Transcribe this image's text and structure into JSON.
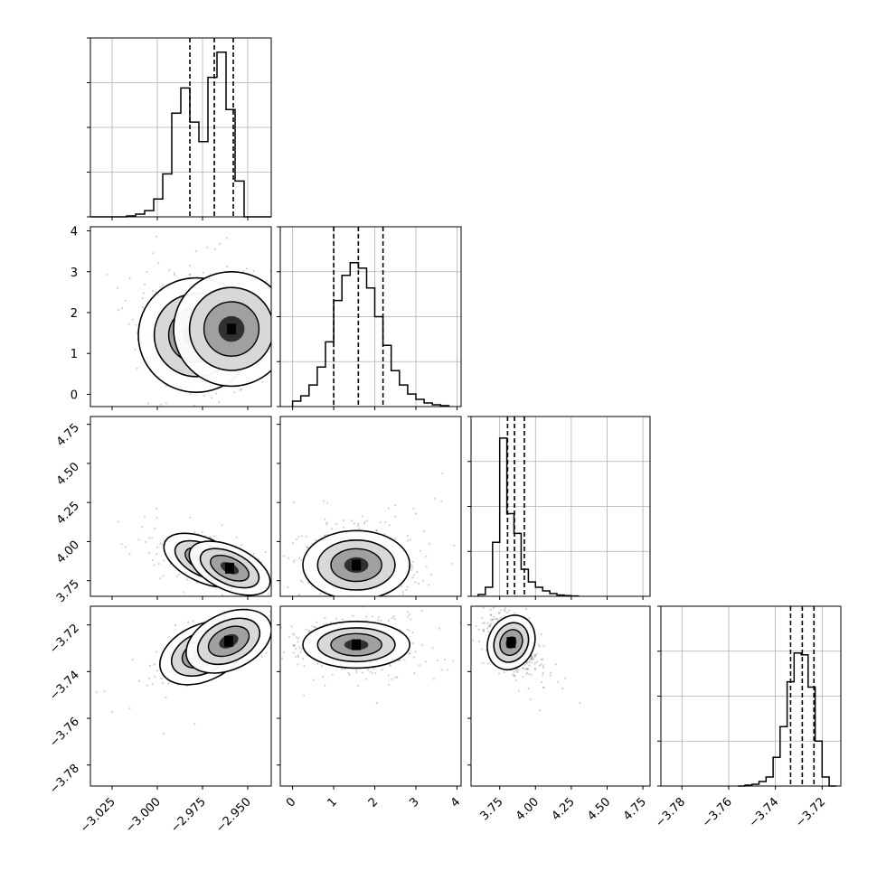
{
  "figure": {
    "title": "",
    "colors": {
      "frame": "#000000",
      "grid": "#b0b0b0",
      "hist": "#000000",
      "scatter": "#000000",
      "background": "#ffffff"
    }
  },
  "chart_data": [
    {
      "type": "histogram",
      "panel": "hist-p0",
      "parameter_index": 0,
      "title": "",
      "xlabel": "",
      "ylabel": "",
      "xlim": [
        -3.037,
        -2.937
      ],
      "ylim": [
        0,
        1.0
      ],
      "grid": true,
      "bin_edges": [
        -3.037,
        -3.032,
        -3.027,
        -3.022,
        -3.017,
        -3.012,
        -3.007,
        -3.002,
        -2.997,
        -2.992,
        -2.987,
        -2.982,
        -2.977,
        -2.972,
        -2.967,
        -2.962,
        -2.957,
        -2.952,
        -2.947,
        -2.942,
        -2.937
      ],
      "values": [
        0.0,
        0.0,
        0.0,
        0.0,
        0.005,
        0.015,
        0.035,
        0.1,
        0.24,
        0.58,
        0.72,
        0.53,
        0.42,
        0.78,
        0.92,
        0.6,
        0.2,
        0.0,
        0.0,
        0.0
      ],
      "quantile_lines_x": [
        -2.982,
        -2.9685,
        -2.958
      ]
    },
    {
      "type": "histogram",
      "panel": "hist-p1",
      "parameter_index": 1,
      "title": "",
      "xlabel": "",
      "ylabel": "",
      "xlim": [
        -0.3,
        4.1
      ],
      "ylim": [
        0,
        1.0
      ],
      "grid": true,
      "bin_edges": [
        0.0,
        0.2,
        0.4,
        0.6,
        0.8,
        1.0,
        1.2,
        1.4,
        1.6,
        1.8,
        2.0,
        2.2,
        2.4,
        2.6,
        2.8,
        3.0,
        3.2,
        3.4,
        3.6,
        3.8
      ],
      "values": [
        0.03,
        0.06,
        0.12,
        0.22,
        0.36,
        0.59,
        0.73,
        0.8,
        0.77,
        0.66,
        0.5,
        0.34,
        0.2,
        0.12,
        0.07,
        0.04,
        0.02,
        0.01,
        0.005
      ],
      "quantile_lines_x": [
        1.0,
        1.6,
        2.2
      ]
    },
    {
      "type": "histogram",
      "panel": "hist-p2",
      "parameter_index": 2,
      "title": "",
      "xlabel": "",
      "ylabel": "",
      "xlim": [
        3.55,
        4.8
      ],
      "ylim": [
        0,
        1.0
      ],
      "grid": true,
      "bin_edges": [
        3.6,
        3.65,
        3.7,
        3.75,
        3.8,
        3.85,
        3.9,
        3.95,
        4.0,
        4.05,
        4.1,
        4.15,
        4.2,
        4.25,
        4.3
      ],
      "values": [
        0.01,
        0.05,
        0.3,
        0.88,
        0.46,
        0.35,
        0.15,
        0.08,
        0.05,
        0.03,
        0.015,
        0.007,
        0.004,
        0.002
      ],
      "quantile_lines_x": [
        3.805,
        3.853,
        3.922
      ]
    },
    {
      "type": "histogram",
      "panel": "hist-p3",
      "parameter_index": 3,
      "title": "",
      "xlabel": "",
      "ylabel": "",
      "xlim": [
        -3.789,
        -3.712
      ],
      "ylim": [
        0,
        1.0
      ],
      "grid": true,
      "bin_edges": [
        -3.756,
        -3.753,
        -3.75,
        -3.747,
        -3.744,
        -3.741,
        -3.738,
        -3.735,
        -3.732,
        -3.729,
        -3.726,
        -3.723,
        -3.72,
        -3.717,
        -3.714
      ],
      "values": [
        0.0,
        0.005,
        0.01,
        0.025,
        0.05,
        0.16,
        0.33,
        0.58,
        0.74,
        0.73,
        0.55,
        0.25,
        0.05,
        0.0
      ],
      "quantile_lines_x": [
        -3.7335,
        -3.7285,
        -3.7235
      ]
    },
    {
      "type": "scatter",
      "panel": "p1-vs-p0",
      "x_param": 0,
      "y_param": 1,
      "title": "",
      "xlabel": "",
      "ylabel": "",
      "xlim": [
        -3.037,
        -2.937
      ],
      "ylim": [
        -0.3,
        4.1
      ],
      "grid": false,
      "modes": [
        [
          -2.9785,
          1.45
        ],
        [
          -2.959,
          1.6
        ]
      ],
      "contour_levels": [
        0.39,
        0.86,
        1.0
      ]
    },
    {
      "type": "scatter",
      "panel": "p2-vs-p0",
      "x_param": 0,
      "y_param": 2,
      "title": "",
      "xlabel": "",
      "ylabel": "",
      "xlim": [
        -3.037,
        -2.937
      ],
      "ylim": [
        3.65,
        4.8
      ],
      "grid": false,
      "modes": [
        [
          -2.974,
          3.88
        ],
        [
          -2.96,
          3.83
        ]
      ],
      "contour_levels": [
        0.39,
        0.86,
        1.0
      ]
    },
    {
      "type": "scatter",
      "panel": "p2-vs-p1",
      "x_param": 1,
      "y_param": 2,
      "title": "",
      "xlabel": "",
      "ylabel": "",
      "xlim": [
        -0.3,
        4.1
      ],
      "ylim": [
        3.65,
        4.8
      ],
      "grid": false,
      "modes": [
        [
          1.55,
          3.85
        ]
      ],
      "contour_levels": [
        0.39,
        0.86,
        1.0
      ]
    },
    {
      "type": "scatter",
      "panel": "p3-vs-p0",
      "x_param": 0,
      "y_param": 3,
      "title": "",
      "xlabel": "",
      "ylabel": "",
      "xlim": [
        -3.037,
        -2.937
      ],
      "ylim": [
        -3.789,
        -3.712
      ],
      "grid": false,
      "modes": [
        [
          -2.975,
          -3.732
        ],
        [
          -2.9605,
          -3.727
        ]
      ],
      "contour_levels": [
        0.39,
        0.86,
        1.0
      ]
    },
    {
      "type": "scatter",
      "panel": "p3-vs-p1",
      "x_param": 1,
      "y_param": 3,
      "title": "",
      "xlabel": "",
      "ylabel": "",
      "xlim": [
        -0.3,
        4.1
      ],
      "ylim": [
        -3.789,
        -3.712
      ],
      "grid": false,
      "modes": [
        [
          1.55,
          -3.7285
        ]
      ],
      "contour_levels": [
        0.39,
        0.86,
        1.0
      ]
    },
    {
      "type": "scatter",
      "panel": "p3-vs-p2",
      "x_param": 2,
      "y_param": 3,
      "title": "",
      "xlabel": "",
      "ylabel": "",
      "xlim": [
        3.55,
        4.8
      ],
      "ylim": [
        -3.789,
        -3.712
      ],
      "grid": false,
      "modes": [
        [
          3.83,
          -3.7275
        ]
      ],
      "contour_levels": [
        0.39,
        0.86,
        1.0
      ]
    }
  ],
  "axes": {
    "p0_ticks": [
      "−3.025",
      "−3.000",
      "−2.975",
      "−2.950"
    ],
    "p0_tick_values": [
      -3.025,
      -3.0,
      -2.975,
      -2.95
    ],
    "p1_ticks": [
      "0",
      "1",
      "2",
      "3",
      "4"
    ],
    "p1_tick_values": [
      0,
      1,
      2,
      3,
      4
    ],
    "p2_ticks": [
      "3.75",
      "4.00",
      "4.25",
      "4.50",
      "4.75"
    ],
    "p2_tick_values": [
      3.75,
      4.0,
      4.25,
      4.5,
      4.75
    ],
    "p3_ticks": [
      "−3.78",
      "−3.76",
      "−3.74",
      "−3.72"
    ],
    "p3_tick_values": [
      -3.78,
      -3.76,
      -3.74,
      -3.72
    ]
  }
}
